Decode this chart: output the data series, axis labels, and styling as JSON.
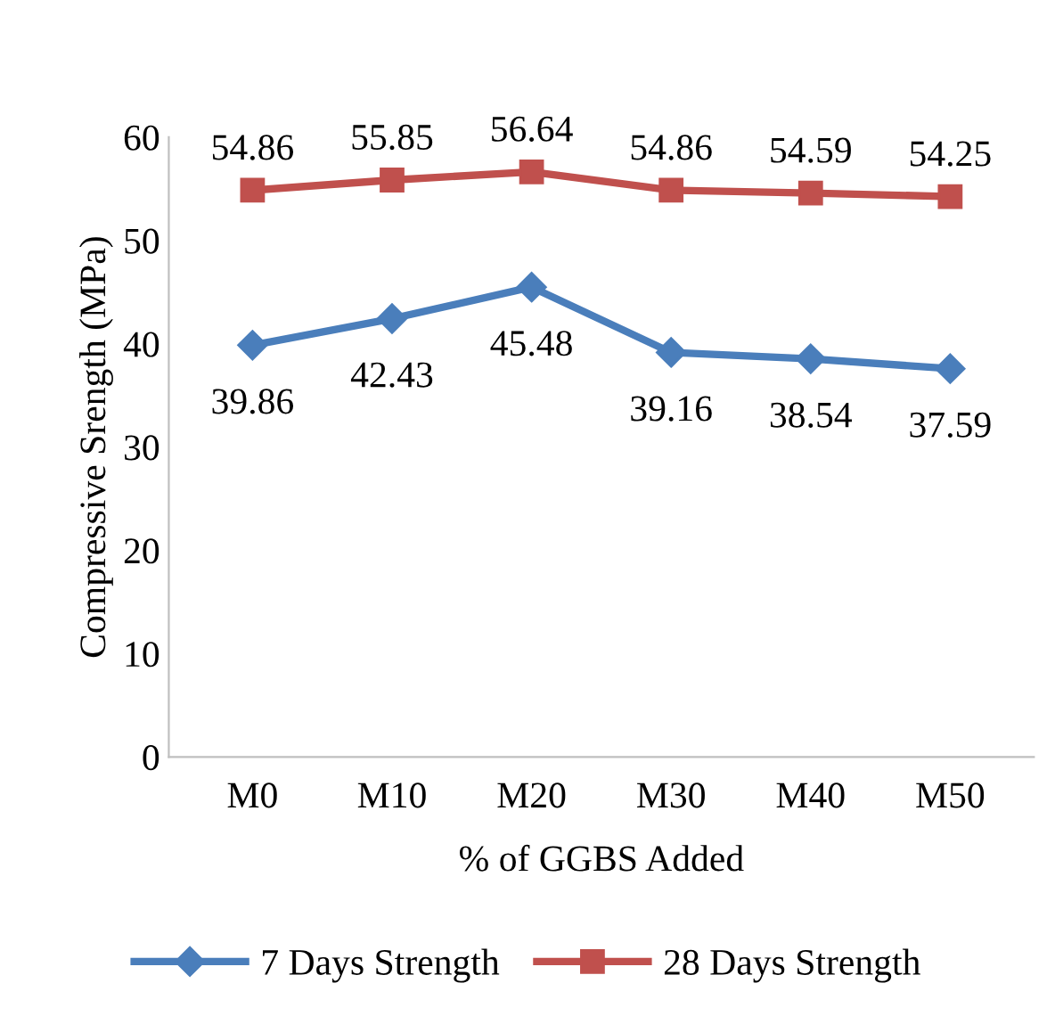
{
  "chart_data": {
    "type": "line",
    "xlabel": "% of GGBS Added",
    "ylabel": "Compressive Srength (MPa)",
    "categories": [
      "M0",
      "M10",
      "M20",
      "M30",
      "M40",
      "M50"
    ],
    "series": [
      {
        "name": "7 Days Strength",
        "color": "#4a7ebb",
        "marker": "diamond",
        "values": [
          39.86,
          42.43,
          45.48,
          39.16,
          38.54,
          37.59
        ]
      },
      {
        "name": "28 Days Strength",
        "color": "#c0504d",
        "marker": "square",
        "values": [
          54.86,
          55.85,
          56.64,
          54.86,
          54.59,
          54.25
        ]
      }
    ],
    "ylim": [
      0,
      60
    ],
    "yticks": [
      0,
      10,
      20,
      30,
      40,
      50,
      60
    ],
    "grid": false,
    "legend": "bottom",
    "data_labels": true,
    "line_style": "solid"
  }
}
